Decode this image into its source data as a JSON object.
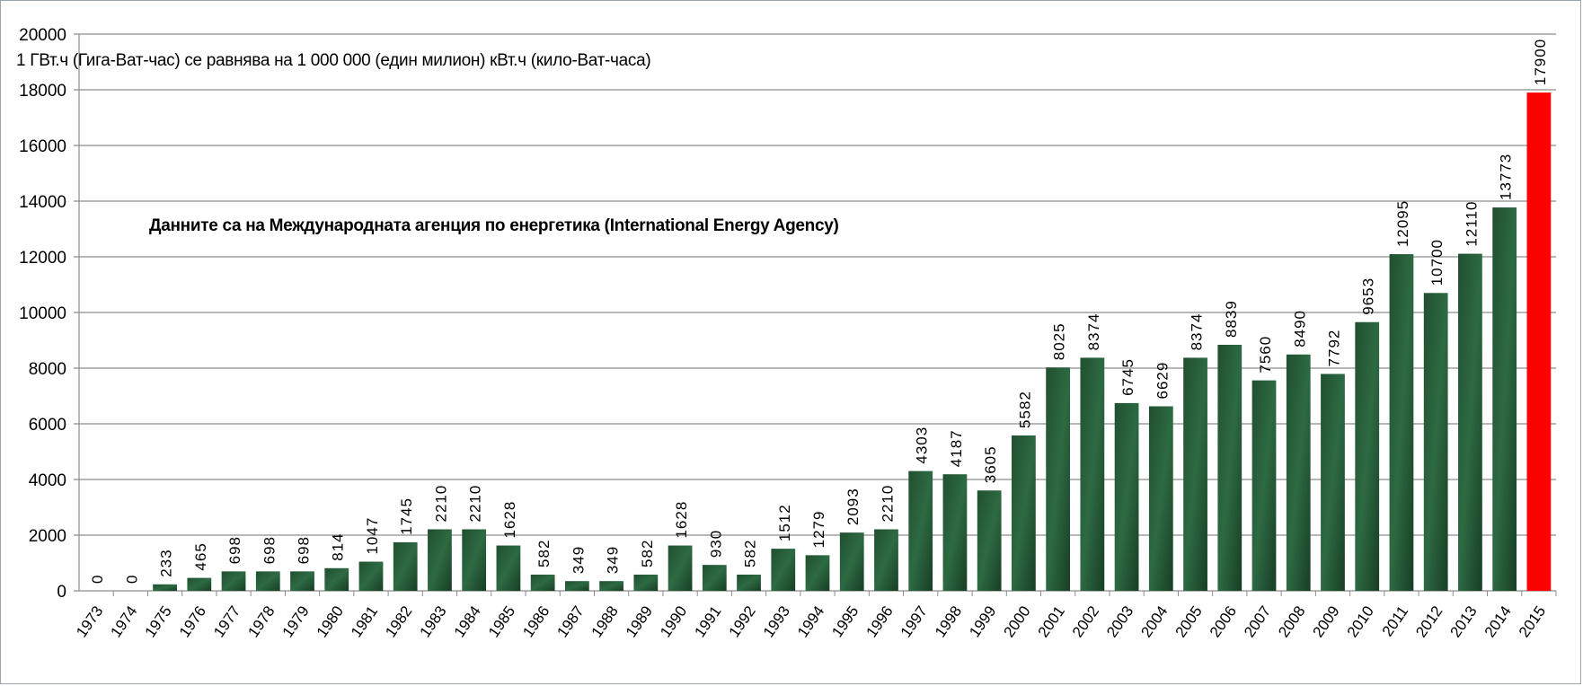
{
  "chart_data": {
    "type": "bar",
    "title": "",
    "xlabel": "",
    "ylabel": "",
    "ylim": [
      0,
      20000
    ],
    "yticks": [
      0,
      2000,
      4000,
      6000,
      8000,
      10000,
      12000,
      14000,
      16000,
      18000,
      20000
    ],
    "grid": true,
    "categories": [
      "1973",
      "1974",
      "1975",
      "1976",
      "1977",
      "1978",
      "1979",
      "1980",
      "1981",
      "1982",
      "1983",
      "1984",
      "1985",
      "1986",
      "1987",
      "1988",
      "1989",
      "1990",
      "1991",
      "1992",
      "1993",
      "1994",
      "1995",
      "1996",
      "1997",
      "1998",
      "1999",
      "2000",
      "2001",
      "2002",
      "2003",
      "2004",
      "2005",
      "2006",
      "2007",
      "2008",
      "2009",
      "2010",
      "2011",
      "2012",
      "2013",
      "2014",
      "2015"
    ],
    "values": [
      0,
      0,
      233,
      465,
      698,
      698,
      698,
      814,
      1047,
      1745,
      2210,
      2210,
      1628,
      582,
      349,
      349,
      582,
      1628,
      930,
      582,
      1512,
      1279,
      2093,
      2210,
      4303,
      4187,
      3605,
      5582,
      8025,
      8374,
      6745,
      6629,
      8374,
      8839,
      7560,
      8490,
      7792,
      9653,
      12095,
      10700,
      12110,
      13773,
      17900
    ],
    "bar_color": "#1f4a2c",
    "highlight_color": "#ff0000",
    "highlight_index": 42,
    "annotations": [
      "1 ГВт.ч (Гига-Ват-час) се равнява на 1 000 000 (един милион) кВт.ч (кило-Ват-часа)",
      "Данните са на Международната  агенция по енергетика (International  Energy Agency)"
    ]
  }
}
